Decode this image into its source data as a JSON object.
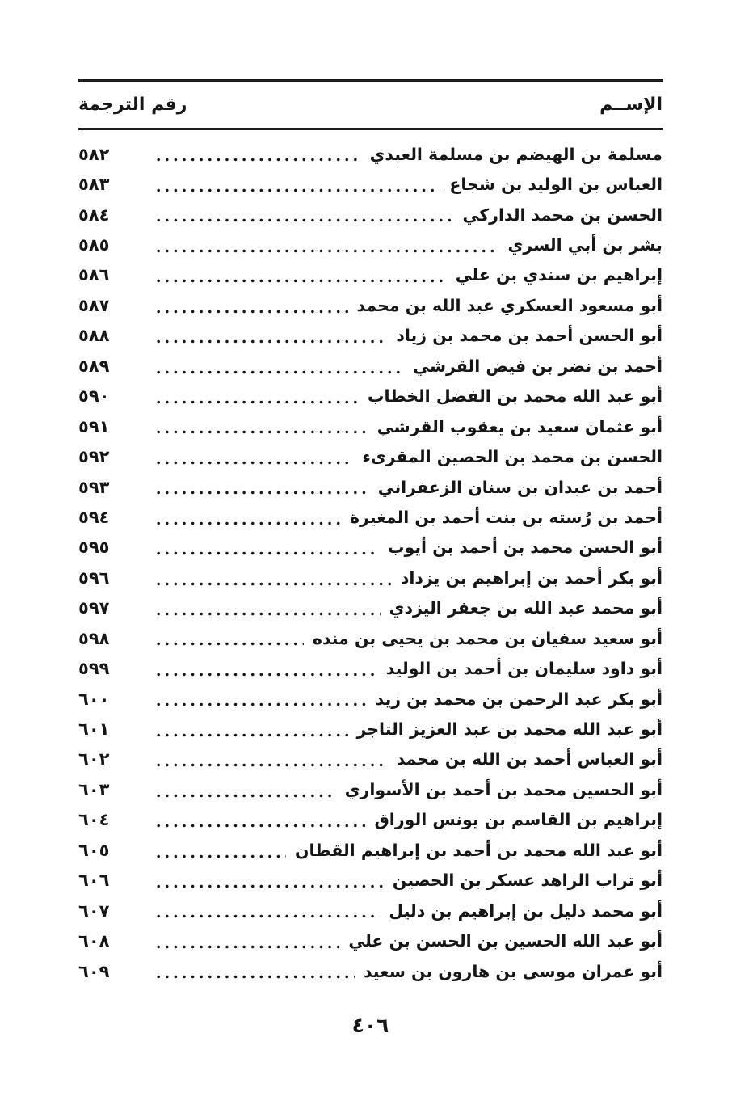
{
  "document": {
    "header": {
      "name_column": "الإســم",
      "number_column": "رقم الترجمة"
    },
    "entries": [
      {
        "name": "مسلمة بن الهيضم بن مسلمة العبدي",
        "number": "٥٨٢"
      },
      {
        "name": "العباس بن الوليد بن شجاع",
        "number": "٥٨٣"
      },
      {
        "name": "الحسن بن محمد الداركي",
        "number": "٥٨٤"
      },
      {
        "name": "بشر بن أبي السري",
        "number": "٥٨٥"
      },
      {
        "name": "إبراهيم بن سندي بن علي",
        "number": "٥٨٦"
      },
      {
        "name": "أبو مسعود العسكري عبد الله بن محمد",
        "number": "٥٨٧"
      },
      {
        "name": "أبو الحسن أحمد بن محمد بن زياد",
        "number": "٥٨٨"
      },
      {
        "name": "أحمد بن نضر بن فيض القرشي",
        "number": "٥٨٩"
      },
      {
        "name": "أبو عبد الله محمد بن الفضل الخطاب",
        "number": "٥٩٠"
      },
      {
        "name": "أبو عثمان سعيد بن يعقوب القرشي",
        "number": "٥٩١"
      },
      {
        "name": "الحسن بن محمد بن الحصين المقرىء",
        "number": "٥٩٢"
      },
      {
        "name": "أحمد بن عبدان بن سنان الزعفراني",
        "number": "٥٩٣"
      },
      {
        "name": "أحمد بن رُسته بن بنت أحمد بن المغيرة",
        "number": "٥٩٤"
      },
      {
        "name": "أبو الحسن محمد بن أحمد بن أيوب",
        "number": "٥٩٥"
      },
      {
        "name": "أبو بكر أحمد بن إبراهيم بن يزداد",
        "number": "٥٩٦"
      },
      {
        "name": "أبو محمد عبد الله بن جعفر اليزدي",
        "number": "٥٩٧"
      },
      {
        "name": "أبو سعيد سفيان بن محمد بن يحيى بن منده",
        "number": "٥٩٨"
      },
      {
        "name": "أبو داود سليمان بن أحمد بن الوليد",
        "number": "٥٩٩"
      },
      {
        "name": "أبو بكر عبد الرحمن بن محمد بن زيد",
        "number": "٦٠٠"
      },
      {
        "name": "أبو عبد الله محمد بن عبد العزيز التاجر",
        "number": "٦٠١"
      },
      {
        "name": "أبو العباس أحمد بن الله بن محمد",
        "number": "٦٠٢"
      },
      {
        "name": "أبو الحسين محمد بن أحمد بن الأسواري",
        "number": "٦٠٣"
      },
      {
        "name": "إبراهيم بن القاسم بن يونس الوراق",
        "number": "٦٠٤"
      },
      {
        "name": "أبو عبد الله محمد بن أحمد بن إبراهيم القطان",
        "number": "٦٠٥"
      },
      {
        "name": "أبو تراب الزاهد عسكر بن الحصين",
        "number": "٦٠٦"
      },
      {
        "name": "أبو محمد دليل بن إبراهيم بن دليل",
        "number": "٦٠٧"
      },
      {
        "name": "أبو عبد الله الحسين بن الحسن بن علي",
        "number": "٦٠٨"
      },
      {
        "name": "أبو عمران موسى بن هارون بن سعيد",
        "number": "٦٠٩"
      }
    ],
    "page_number": "٤٠٦",
    "colors": {
      "ink": "#161616",
      "paper": "#ffffff"
    }
  }
}
